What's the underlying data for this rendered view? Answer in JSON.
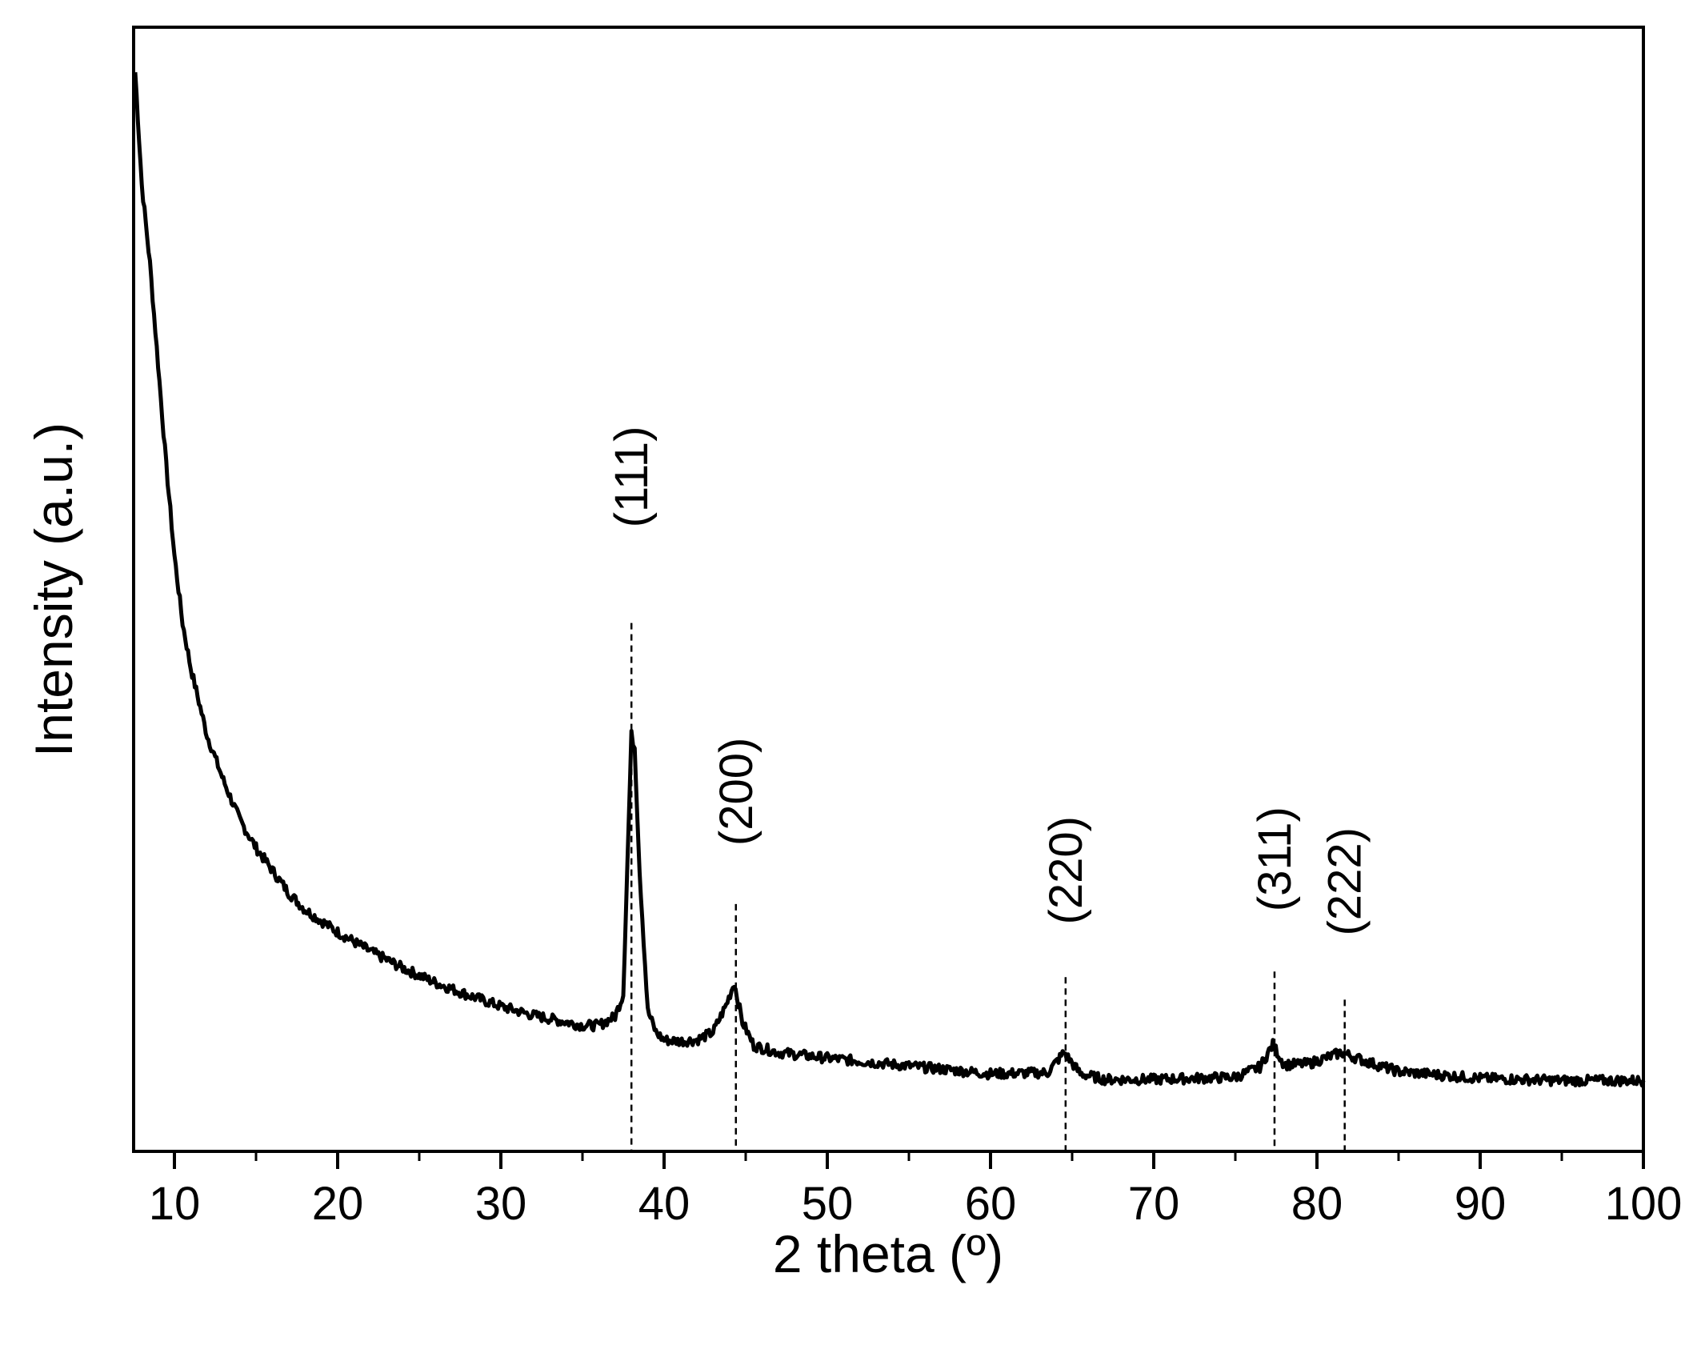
{
  "chart_data": {
    "type": "line",
    "title": "",
    "xlabel": "2 theta (º)",
    "ylabel": "Intensity (a.u.)",
    "xlim": [
      7.5,
      100
    ],
    "ylim": [
      0,
      100
    ],
    "x_ticks": [
      10,
      20,
      30,
      40,
      50,
      60,
      70,
      80,
      90,
      100
    ],
    "x_tick_labels": [
      "10",
      "20",
      "30",
      "40",
      "50",
      "60",
      "70",
      "80",
      "90",
      "100"
    ],
    "x_minor_ticks": [
      15,
      25,
      35,
      45,
      55,
      65,
      75,
      85,
      95
    ],
    "y_ticks_shown": false,
    "grid": false,
    "legend": "none",
    "line_color": "#000000",
    "series": [
      {
        "x": [
          7.6,
          8,
          8.5,
          9,
          9.5,
          10,
          10.5,
          11,
          11.5,
          12,
          13,
          14,
          15,
          16,
          17,
          18,
          19,
          20,
          22,
          24,
          26,
          28,
          30,
          32,
          33,
          34,
          35,
          36,
          37,
          37.5,
          38,
          38.2,
          38.5,
          39,
          39.5,
          40,
          41,
          42,
          43,
          43.8,
          44.3,
          44.8,
          45.5,
          47,
          50,
          55,
          60,
          63.5,
          64.5,
          65.5,
          67,
          70,
          75,
          76.5,
          77.3,
          78,
          79.5,
          81.5,
          83,
          85,
          90,
          95,
          100
        ],
        "y": [
          96,
          86,
          79,
          70,
          61,
          53,
          47,
          43,
          40,
          37,
          33,
          29.5,
          27,
          25,
          23,
          21.5,
          20.5,
          19.5,
          17.8,
          16.3,
          15,
          13.9,
          12.9,
          12.1,
          11.8,
          11.5,
          11.2,
          11.2,
          12.0,
          14.0,
          37.0,
          36.0,
          25.0,
          12.5,
          10.6,
          9.9,
          9.8,
          9.9,
          10.6,
          13.0,
          15.0,
          11.5,
          9.4,
          8.8,
          8.3,
          7.6,
          6.9,
          7.0,
          8.8,
          6.9,
          6.4,
          6.4,
          6.6,
          7.5,
          9.5,
          7.7,
          7.8,
          8.8,
          8.0,
          7.1,
          6.5,
          6.3,
          6.3
        ]
      }
    ],
    "annotations": [
      {
        "label": "(111)",
        "x": 38.0,
        "y_top": 47,
        "label_y": 60
      },
      {
        "label": "(200)",
        "x": 44.4,
        "y_top": 22,
        "label_y": 32
      },
      {
        "label": "(220)",
        "x": 64.6,
        "y_top": 15.5,
        "label_y": 25
      },
      {
        "label": "(311)",
        "x": 77.4,
        "y_top": 16,
        "label_y": 26
      },
      {
        "label": "(222)",
        "x": 81.7,
        "y_top": 13.5,
        "label_y": 24
      }
    ]
  }
}
